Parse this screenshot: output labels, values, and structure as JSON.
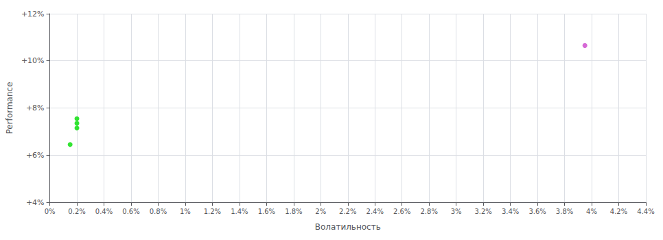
{
  "chart_data": {
    "type": "scatter",
    "xlabel": "Волатильность",
    "ylabel": "Performance",
    "xlim": [
      0.0,
      0.044
    ],
    "ylim": [
      0.04,
      0.12
    ],
    "xticks": [
      {
        "value": 0.0,
        "label": "0%"
      },
      {
        "value": 0.002,
        "label": "0.2%"
      },
      {
        "value": 0.004,
        "label": "0.4%"
      },
      {
        "value": 0.006,
        "label": "0.6%"
      },
      {
        "value": 0.008,
        "label": "0.8%"
      },
      {
        "value": 0.01,
        "label": "1%"
      },
      {
        "value": 0.012,
        "label": "1.2%"
      },
      {
        "value": 0.014,
        "label": "1.4%"
      },
      {
        "value": 0.016,
        "label": "1.6%"
      },
      {
        "value": 0.018,
        "label": "1.8%"
      },
      {
        "value": 0.02,
        "label": "2%"
      },
      {
        "value": 0.022,
        "label": "2.2%"
      },
      {
        "value": 0.024,
        "label": "2.4%"
      },
      {
        "value": 0.026,
        "label": "2.6%"
      },
      {
        "value": 0.028,
        "label": "2.8%"
      },
      {
        "value": 0.03,
        "label": "3%"
      },
      {
        "value": 0.032,
        "label": "3.2%"
      },
      {
        "value": 0.034,
        "label": "3.4%"
      },
      {
        "value": 0.036,
        "label": "3.6%"
      },
      {
        "value": 0.038,
        "label": "3.8%"
      },
      {
        "value": 0.04,
        "label": "4%"
      },
      {
        "value": 0.042,
        "label": "4.2%"
      },
      {
        "value": 0.044,
        "label": "4.4%"
      }
    ],
    "yticks": [
      {
        "value": 0.04,
        "label": "+4%"
      },
      {
        "value": 0.06,
        "label": "+6%"
      },
      {
        "value": 0.08,
        "label": "+8%"
      },
      {
        "value": 0.1,
        "label": "+10%"
      },
      {
        "value": 0.12,
        "label": "+12%"
      }
    ],
    "grid": true,
    "series": [
      {
        "color": "#00dd00",
        "x": [
          0.002,
          0.002,
          0.002,
          0.0015
        ],
        "values": [
          0.0755,
          0.0735,
          0.0715,
          0.0645
        ]
      },
      {
        "color": "#cc44cc",
        "x": [
          0.0395
        ],
        "values": [
          0.1065
        ]
      }
    ]
  }
}
